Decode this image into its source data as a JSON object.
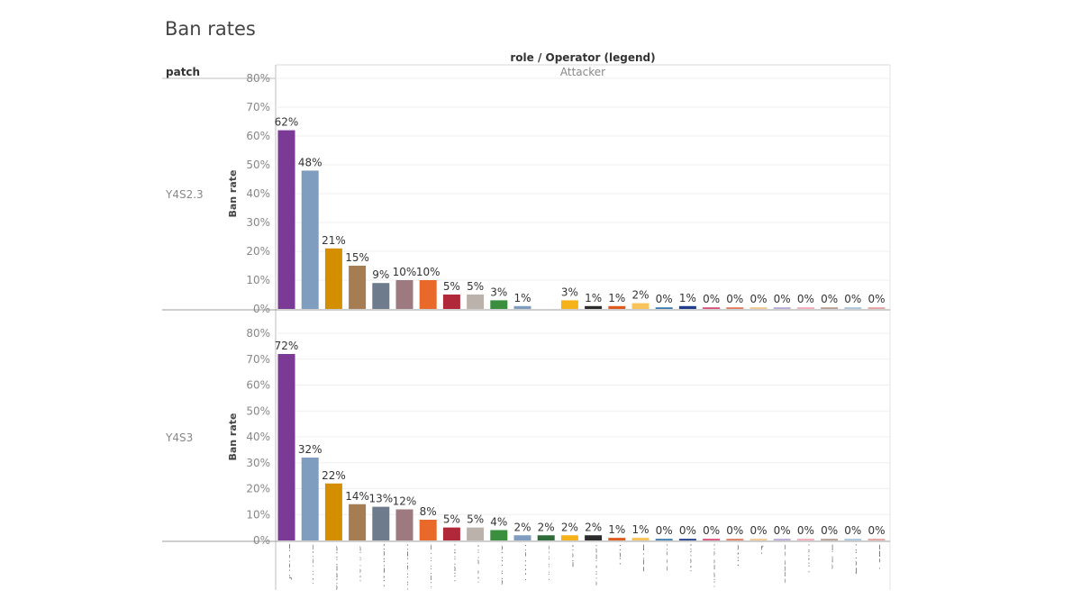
{
  "page": {
    "title": "Ban rates",
    "column_header": "role / Operator (legend)",
    "row_header": "patch",
    "role_label": "Attacker"
  },
  "chart_data": [
    {
      "type": "bar",
      "panel": "Y4S2.3",
      "ylabel": "Ban rate",
      "ylim": [
        0,
        80
      ],
      "yticks": [
        "0%",
        "10%",
        "20%",
        "30%",
        "40%",
        "50%",
        "60%",
        "70%",
        "80%"
      ],
      "grid": true,
      "categories": [
        "JACKAL",
        "MONTAGNE",
        "BLACKBEARD",
        "NOMAD",
        "MAVERICK",
        "THATCHER",
        "HERMITE",
        "HIBANA",
        "NO BAN",
        "CAPITAO",
        "TWITCH",
        "AMARU",
        "LION",
        "KOKKAEBI",
        "ASH",
        "BLITZ",
        "BUCK",
        "NOKK",
        "GRIDLOCK",
        "YING",
        "IQ",
        "SLEDGE",
        "FINKA",
        "GLAZ",
        "ZOFIA",
        "FUZE"
      ],
      "values": [
        62,
        48,
        21,
        15,
        9,
        10,
        10,
        5,
        5,
        3,
        1,
        null,
        3,
        1,
        1,
        2,
        0,
        1,
        0,
        0,
        0,
        0,
        0,
        0,
        0,
        0
      ],
      "labels": [
        "62%",
        "48%",
        "21%",
        "15%",
        "9%",
        "10%",
        "10%",
        "5%",
        "5%",
        "3%",
        "1%",
        "",
        "3%",
        "1%",
        "1%",
        "2%",
        "0%",
        "1%",
        "0%",
        "0%",
        "0%",
        "0%",
        "0%",
        "0%",
        "0%",
        "0%"
      ]
    },
    {
      "type": "bar",
      "panel": "Y4S3",
      "ylabel": "Ban rate",
      "ylim": [
        0,
        80
      ],
      "yticks": [
        "0%",
        "10%",
        "20%",
        "30%",
        "40%",
        "50%",
        "60%",
        "70%",
        "80%"
      ],
      "grid": true,
      "categories": [
        "JACKAL",
        "MONTAGNE",
        "BLACKBEARD",
        "NOMAD",
        "MAVERICK",
        "THATCHER",
        "HERMITE",
        "HIBANA",
        "NO BAN",
        "CAPITAO",
        "TWITCH",
        "AMARU",
        "LION",
        "KOKKAEBI",
        "ASH",
        "BLITZ",
        "BUCK",
        "NOKK",
        "GRIDLOCK",
        "YING",
        "IQ",
        "SLEDGE",
        "FINKA",
        "GLAZ",
        "ZOFIA",
        "FUZE"
      ],
      "values": [
        72,
        32,
        22,
        14,
        13,
        12,
        8,
        5,
        5,
        4,
        2,
        2,
        2,
        2,
        1,
        1,
        0,
        0,
        0,
        0,
        0,
        0,
        0,
        0,
        0,
        0
      ],
      "labels": [
        "72%",
        "32%",
        "22%",
        "14%",
        "13%",
        "12%",
        "8%",
        "5%",
        "5%",
        "4%",
        "2%",
        "2%",
        "2%",
        "2%",
        "1%",
        "1%",
        "0%",
        "0%",
        "0%",
        "0%",
        "0%",
        "0%",
        "0%",
        "0%",
        "0%",
        "0%"
      ]
    }
  ],
  "axis_labels": [
    "JACKAL",
    "NTAGNE",
    "CKBEARD",
    "NOMAD",
    "AVERICK",
    "HATCHER",
    "HERMITE",
    "HIBANA",
    "NO BAN",
    "CAPITAO",
    "TWITCH",
    "AMARU",
    "LION",
    "OKKAEBI",
    "ASH",
    "BLITZ",
    "BUCK",
    "NOKK",
    "RIDLOCK",
    "YING",
    "IQ",
    "SLEDGE",
    "FINKA",
    "GLAZ",
    "ZOFIA",
    "FUZE"
  ],
  "colors": [
    "#7b3a96",
    "#7f9dbf",
    "#d48f00",
    "#a67c52",
    "#6d7b8d",
    "#9c7a7f",
    "#e8692a",
    "#b0283a",
    "#bcb2ac",
    "#3b8e3e",
    "#7f9dbf",
    "#2e6b3a",
    "#f5b21a",
    "#2b2b2b",
    "#e05a1e",
    "#f8c35a",
    "#3c7bb0",
    "#1f3d8a",
    "#d94f7a",
    "#e07a5f",
    "#f2c68c",
    "#b9a7d6",
    "#f5a8b8",
    "#b59f90",
    "#a7c4de",
    "#e6a0a0"
  ]
}
